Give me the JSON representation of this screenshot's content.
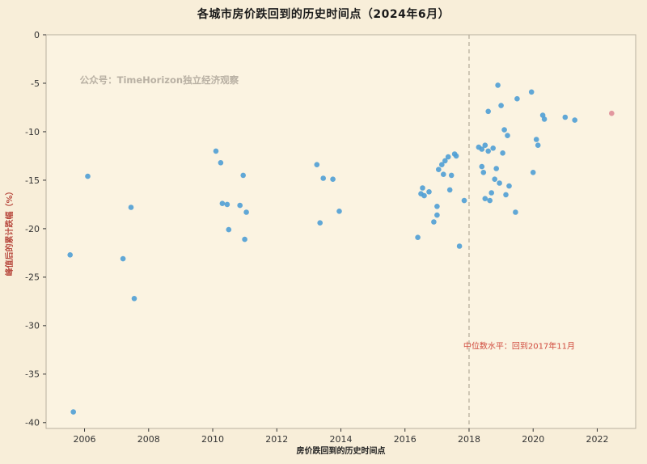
{
  "chart_data": {
    "type": "scatter",
    "title": "各城市房价跌回到的历史时间点（2024年6月）",
    "xlabel": "房价跌回到的历史时间点",
    "ylabel": "峰值后的累计跌幅（%）",
    "watermark": "公众号：TimeHorizon独立经济观察",
    "watermark_pos": {
      "x": 2005.85,
      "y": -5.0
    },
    "xlim": [
      2004.8,
      2023.2
    ],
    "ylim": [
      -40.6,
      0
    ],
    "xticks": [
      2006,
      2008,
      2010,
      2012,
      2014,
      2016,
      2018,
      2020,
      2022
    ],
    "yticks": [
      0,
      -5,
      -10,
      -15,
      -20,
      -25,
      -30,
      -35,
      -40
    ],
    "grid": false,
    "legend": "none",
    "median_line": {
      "x": 2018,
      "style": "dashed"
    },
    "annotation": {
      "text": "中位数水平：回到2017年11月",
      "x": 2017.82,
      "y": -32.4
    },
    "series": [
      {
        "name": "cities",
        "color": "#4f9fd5",
        "points": [
          [
            2005.55,
            -22.7
          ],
          [
            2005.65,
            -38.9
          ],
          [
            2006.1,
            -14.6
          ],
          [
            2007.2,
            -23.1
          ],
          [
            2007.45,
            -17.8
          ],
          [
            2007.55,
            -27.2
          ],
          [
            2010.1,
            -12.0
          ],
          [
            2010.25,
            -13.2
          ],
          [
            2010.3,
            -17.4
          ],
          [
            2010.45,
            -17.5
          ],
          [
            2010.5,
            -20.1
          ],
          [
            2010.85,
            -17.6
          ],
          [
            2010.95,
            -14.5
          ],
          [
            2011.0,
            -21.1
          ],
          [
            2011.05,
            -18.3
          ],
          [
            2013.25,
            -13.4
          ],
          [
            2013.35,
            -19.4
          ],
          [
            2013.45,
            -14.8
          ],
          [
            2013.75,
            -14.9
          ],
          [
            2013.95,
            -18.2
          ],
          [
            2016.4,
            -20.9
          ],
          [
            2016.5,
            -16.4
          ],
          [
            2016.55,
            -15.8
          ],
          [
            2016.6,
            -16.6
          ],
          [
            2016.75,
            -16.2
          ],
          [
            2016.9,
            -19.3
          ],
          [
            2017.0,
            -17.7
          ],
          [
            2017.0,
            -18.6
          ],
          [
            2017.05,
            -13.9
          ],
          [
            2017.15,
            -13.4
          ],
          [
            2017.2,
            -14.4
          ],
          [
            2017.25,
            -13.0
          ],
          [
            2017.35,
            -12.6
          ],
          [
            2017.4,
            -16.0
          ],
          [
            2017.45,
            -14.5
          ],
          [
            2017.55,
            -12.3
          ],
          [
            2017.6,
            -12.5
          ],
          [
            2017.7,
            -21.8
          ],
          [
            2017.85,
            -17.1
          ],
          [
            2018.3,
            -11.6
          ],
          [
            2018.4,
            -11.8
          ],
          [
            2018.4,
            -13.6
          ],
          [
            2018.45,
            -14.2
          ],
          [
            2018.5,
            -11.4
          ],
          [
            2018.5,
            -16.9
          ],
          [
            2018.6,
            -7.9
          ],
          [
            2018.6,
            -12.0
          ],
          [
            2018.65,
            -17.1
          ],
          [
            2018.7,
            -16.3
          ],
          [
            2018.75,
            -11.7
          ],
          [
            2018.8,
            -14.9
          ],
          [
            2018.85,
            -13.8
          ],
          [
            2018.9,
            -5.2
          ],
          [
            2018.95,
            -15.3
          ],
          [
            2019.0,
            -7.3
          ],
          [
            2019.05,
            -12.2
          ],
          [
            2019.1,
            -9.8
          ],
          [
            2019.15,
            -16.5
          ],
          [
            2019.2,
            -10.4
          ],
          [
            2019.25,
            -15.6
          ],
          [
            2019.45,
            -18.3
          ],
          [
            2019.5,
            -6.6
          ],
          [
            2019.95,
            -5.9
          ],
          [
            2020.0,
            -14.2
          ],
          [
            2020.1,
            -10.8
          ],
          [
            2020.15,
            -11.4
          ],
          [
            2020.3,
            -8.3
          ],
          [
            2020.35,
            -8.7
          ],
          [
            2021.0,
            -8.5
          ],
          [
            2021.3,
            -8.8
          ]
        ]
      },
      {
        "name": "highlight",
        "color": "#df8d98",
        "points": [
          [
            2022.45,
            -8.1
          ]
        ]
      }
    ]
  },
  "colors": {
    "background": "#f8eed9",
    "plot_background": "#fbf3e1",
    "spine": "#b9b09e",
    "tick_text": "#333333",
    "title_text": "#1a1a1a",
    "xlabel_text": "#222222",
    "ylabel_text": "#b84a3f",
    "annotation_text": "#d04a3d",
    "watermark_text": "#b8b0a3",
    "median_line": "#b3aa99"
  }
}
